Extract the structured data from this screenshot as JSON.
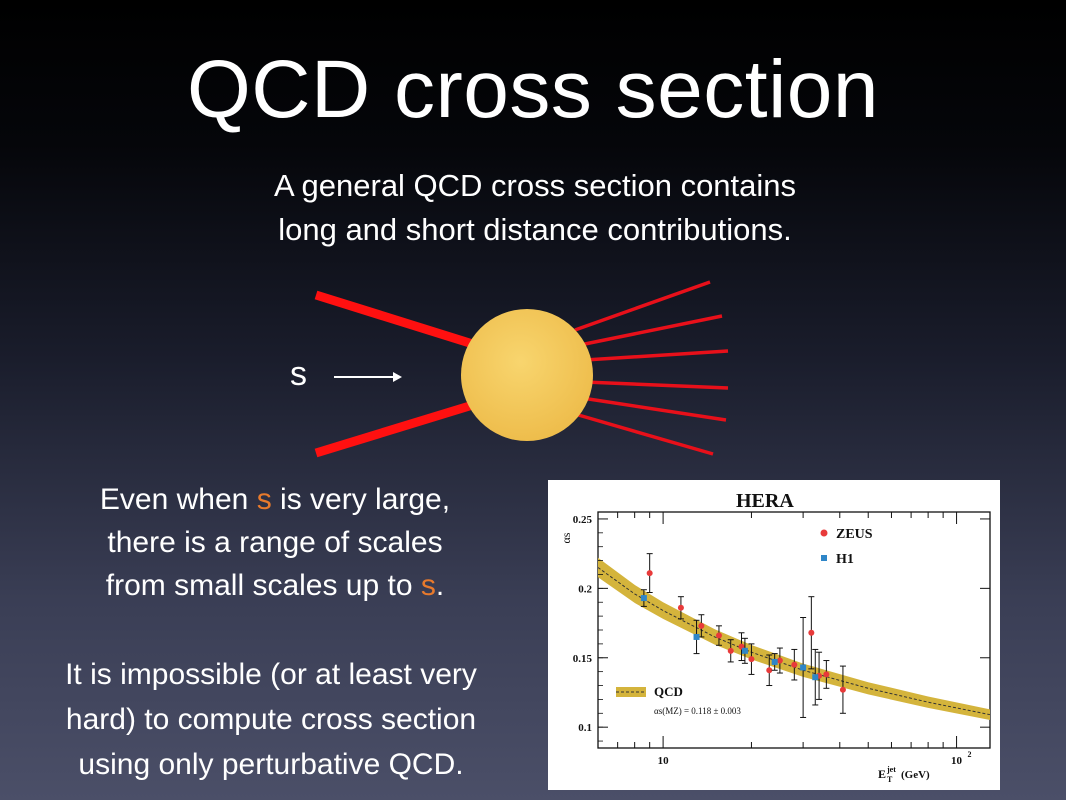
{
  "slide": {
    "title": "QCD cross section",
    "subtitle_line1": "A general QCD cross section contains",
    "subtitle_line2": "long and short distance contributions.",
    "diagram": {
      "energy_label": "s"
    },
    "paragraph1": {
      "line1_a": "Even when ",
      "line1_hl": "s",
      "line1_b": " is very large,",
      "line2": "there is a range of scales",
      "line3_a": "from small scales up to ",
      "line3_hl": "s",
      "line3_b": "."
    },
    "paragraph2": {
      "line1": "It is impossible (or at least very",
      "line2": "hard) to compute cross section",
      "line3": "using only perturbative QCD."
    },
    "colors": {
      "highlight": "#e87a2c",
      "blob": "#f2c55a",
      "jets": "#ff1010"
    }
  },
  "chart_data": {
    "type": "scatter",
    "title": "HERA",
    "ylabel": "αs",
    "xlabel_main": "E",
    "xlabel_sub": "T",
    "xlabel_sup": "jet",
    "xlabel_unit": "(GeV)",
    "x_scale": "log",
    "xlim": [
      6,
      130
    ],
    "ylim": [
      0.085,
      0.255
    ],
    "y_ticks": [
      "0.1",
      "0.15",
      "0.2",
      "0.25"
    ],
    "x_tick_labels": {
      "ten": "10",
      "hundred_base": "10",
      "hundred_exp": "2"
    },
    "legend": {
      "zeus": "ZEUS",
      "h1": "H1",
      "qcd": "QCD",
      "alpha_text": "αs(MZ) = 0.118 ± 0.003",
      "placement": "right (series), bottom-left (band)"
    },
    "series": [
      {
        "name": "ZEUS",
        "color": "#e83a3a",
        "x": [
          9,
          11.5,
          13.5,
          15.5,
          17,
          18.5,
          20,
          23,
          25,
          28,
          32,
          34,
          36,
          41
        ],
        "y": [
          0.211,
          0.186,
          0.173,
          0.166,
          0.155,
          0.158,
          0.149,
          0.141,
          0.148,
          0.145,
          0.168,
          0.137,
          0.138,
          0.127
        ],
        "err": [
          0.014,
          0.008,
          0.008,
          0.007,
          0.008,
          0.01,
          0.011,
          0.011,
          0.009,
          0.011,
          0.026,
          0.017,
          0.01,
          0.017
        ]
      },
      {
        "name": "H1",
        "color": "#2f86c8",
        "x": [
          8.6,
          13,
          19,
          24,
          30,
          33
        ],
        "y": [
          0.193,
          0.165,
          0.155,
          0.147,
          0.143,
          0.136
        ],
        "err": [
          0.006,
          0.012,
          0.009,
          0.006,
          0.036,
          0.02
        ]
      }
    ],
    "band": {
      "name": "QCD",
      "x": [
        6,
        8,
        10,
        15,
        20,
        30,
        50,
        80,
        130
      ],
      "center": [
        0.215,
        0.196,
        0.184,
        0.165,
        0.154,
        0.141,
        0.128,
        0.118,
        0.109
      ],
      "halfwidth": [
        0.007,
        0.0065,
        0.006,
        0.0055,
        0.0052,
        0.0048,
        0.0044,
        0.0041,
        0.0038
      ]
    }
  }
}
